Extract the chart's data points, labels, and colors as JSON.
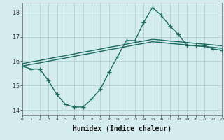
{
  "x": [
    0,
    1,
    2,
    3,
    4,
    5,
    6,
    7,
    8,
    9,
    10,
    11,
    12,
    13,
    14,
    15,
    16,
    17,
    18,
    19,
    20,
    21,
    22,
    23
  ],
  "y_jagged": [
    15.8,
    15.68,
    15.68,
    15.2,
    14.62,
    14.22,
    14.12,
    14.12,
    14.45,
    14.85,
    15.55,
    16.2,
    16.85,
    16.85,
    17.6,
    18.2,
    17.9,
    17.45,
    17.1,
    16.65,
    16.65,
    16.65,
    16.5,
    16.45
  ],
  "y_upper": [
    15.9,
    15.97,
    16.03,
    16.1,
    16.17,
    16.23,
    16.3,
    16.37,
    16.43,
    16.5,
    16.57,
    16.63,
    16.7,
    16.77,
    16.83,
    16.9,
    16.87,
    16.83,
    16.8,
    16.77,
    16.73,
    16.7,
    16.67,
    16.63
  ],
  "y_lower": [
    15.8,
    15.87,
    15.93,
    16.0,
    16.07,
    16.13,
    16.2,
    16.27,
    16.33,
    16.4,
    16.47,
    16.53,
    16.6,
    16.67,
    16.73,
    16.8,
    16.77,
    16.73,
    16.7,
    16.67,
    16.63,
    16.6,
    16.57,
    16.53
  ],
  "xlabel": "Humidex (Indice chaleur)",
  "xlim": [
    0,
    23
  ],
  "ylim": [
    13.8,
    18.4
  ],
  "yticks": [
    14,
    15,
    16,
    17,
    18
  ],
  "xticks": [
    0,
    1,
    2,
    3,
    4,
    5,
    6,
    7,
    8,
    9,
    10,
    11,
    12,
    13,
    14,
    15,
    16,
    17,
    18,
    19,
    20,
    21,
    22,
    23
  ],
  "bg_color": "#d4ecee",
  "grid_color": "#a8ccce",
  "line_color": "#1a6b5e",
  "line_width": 1.0,
  "marker_size": 4.0
}
